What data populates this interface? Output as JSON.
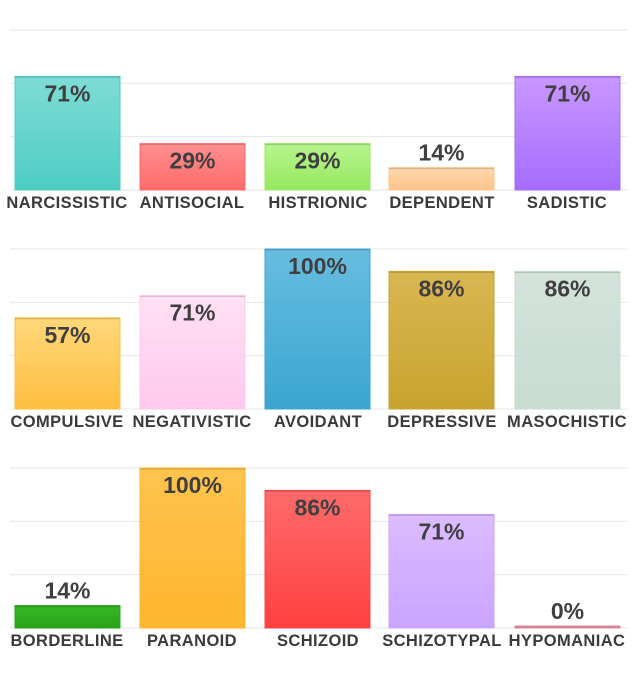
{
  "chart_data": [
    {
      "type": "bar",
      "categories": [
        "NARCISSISTIC",
        "ANTISOCIAL",
        "HISTRIONIC",
        "DEPENDENT",
        "SADISTIC"
      ],
      "values": [
        71,
        29,
        29,
        14,
        71
      ],
      "value_labels": [
        "71%",
        "29%",
        "29%",
        "14%",
        "71%"
      ],
      "colors": [
        [
          "#7fdcd6",
          "#4ecdc4"
        ],
        [
          "#ff8f8f",
          "#ff6b6b"
        ],
        [
          "#b7f58e",
          "#95e85f"
        ],
        [
          "#ffd8ac",
          "#ffc48c"
        ],
        [
          "#c998ff",
          "#a66bff"
        ]
      ],
      "ylim": [
        0,
        100
      ],
      "grid": true
    },
    {
      "type": "bar",
      "categories": [
        "COMPULSIVE",
        "NEGATIVISTIC",
        "AVOIDANT",
        "DEPRESSIVE",
        "MASOCHISTIC"
      ],
      "values": [
        57,
        71,
        100,
        86,
        86
      ],
      "value_labels": [
        "57%",
        "71%",
        "100%",
        "86%",
        "86%"
      ],
      "colors": [
        [
          "#ffd77a",
          "#ffbf3f"
        ],
        [
          "#ffe0f4",
          "#ffc9ed"
        ],
        [
          "#68bde0",
          "#3aa6d0"
        ],
        [
          "#d9b752",
          "#c9a32f"
        ],
        [
          "#d3e3db",
          "#c7dcd2"
        ]
      ],
      "ylim": [
        0,
        100
      ],
      "grid": true
    },
    {
      "type": "bar",
      "categories": [
        "BORDERLINE",
        "PARANOID",
        "SCHIZOID",
        "SCHIZOTYPAL",
        "HYPOMANIAC"
      ],
      "values": [
        14,
        100,
        86,
        71,
        0
      ],
      "value_labels": [
        "14%",
        "100%",
        "86%",
        "71%",
        "0%"
      ],
      "colors": [
        [
          "#38b828",
          "#27a318"
        ],
        [
          "#ffc44e",
          "#ffb52f"
        ],
        [
          "#ff6a6a",
          "#ff4141"
        ],
        [
          "#dcbcff",
          "#cba4ff"
        ],
        [
          "#f7a8b8",
          "#e88a9e"
        ]
      ],
      "ylim": [
        0,
        100
      ],
      "grid": true
    }
  ]
}
